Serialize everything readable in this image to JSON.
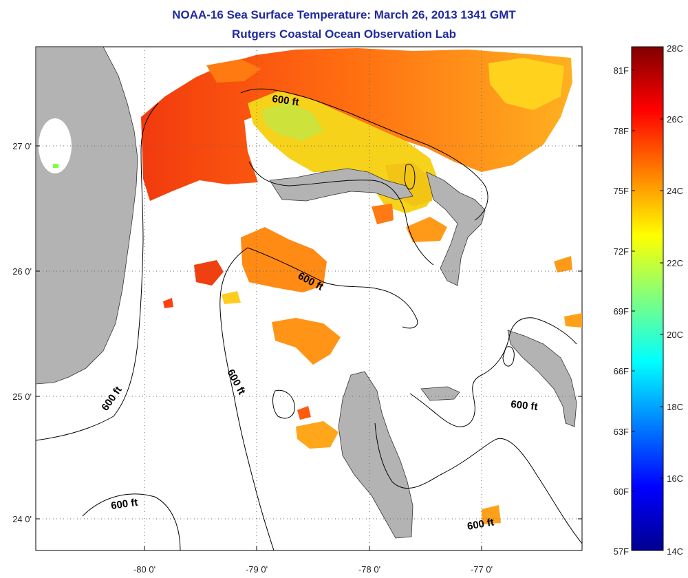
{
  "header": {
    "title": "NOAA-16 Sea Surface Temperature:  March 26, 2013 1341 GMT",
    "subtitle": "Rutgers Coastal Ocean Observation Lab"
  },
  "map": {
    "lat_labels": [
      "27 0'",
      "26 0'",
      "25 0'",
      "24 0'"
    ],
    "lon_labels": [
      "-80 0'",
      "-79 0'",
      "-78 0'",
      "-77 0'"
    ],
    "isobath_label": "600 ft",
    "colors": {
      "land": "#b3b3b3",
      "no_data": "#ffffff",
      "grid": "#555555"
    }
  },
  "colorbar": {
    "fahrenheit_labels": [
      "81F",
      "78F",
      "75F",
      "72F",
      "69F",
      "66F",
      "63F",
      "60F",
      "57F"
    ],
    "celsius_labels": [
      "28C",
      "26C",
      "24C",
      "22C",
      "20C",
      "18C",
      "16C",
      "14C"
    ],
    "range_c": [
      14,
      28
    ],
    "colormap": "jet"
  }
}
